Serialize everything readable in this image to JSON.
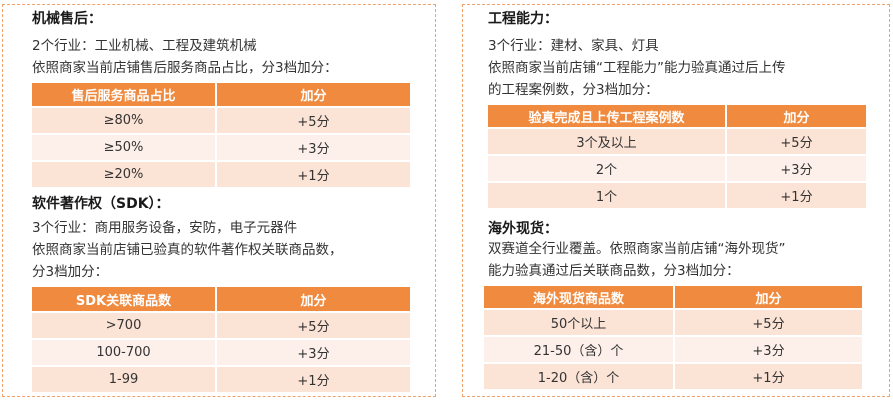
{
  "machinery": {
    "title": "机械售后：",
    "scope": "2个行业：工业机械、工程及建筑机械",
    "desc": "依照商家当前店铺售后服务商品占比，分3档加分：",
    "table": {
      "headers": [
        "售后服务商品占比",
        "加分"
      ],
      "rows": [
        [
          "≥80%",
          "+5分"
        ],
        [
          "≥50%",
          "+3分"
        ],
        [
          "≥20%",
          "+1分"
        ]
      ]
    }
  },
  "software": {
    "title": "软件著作权（SDK）：",
    "scope": "3个行业：商用服务设备，安防，电子元器件",
    "desc_line1": "依照商家当前店铺已验真的软件著作权关联商品数，",
    "desc_line2": "分3档加分：",
    "table": {
      "headers": [
        "SDK关联商品数",
        "加分"
      ],
      "rows": [
        [
          ">700",
          "+5分"
        ],
        [
          "100-700",
          "+3分"
        ],
        [
          "1-99",
          "+1分"
        ]
      ]
    }
  },
  "engineering": {
    "title": "工程能力：",
    "scope": "3个行业：建材、家具、灯具",
    "desc_line1": "依照商家当前店铺“工程能力”能力验真通过后上传",
    "desc_line2": "的工程案例数，分3档加分：",
    "table": {
      "headers": [
        "验真完成且上传工程案例数",
        "加分"
      ],
      "rows": [
        [
          "3个及以上",
          "+5分"
        ],
        [
          "2个",
          "+3分"
        ],
        [
          "1个",
          "+1分"
        ]
      ]
    }
  },
  "overseas": {
    "title": "海外现货：",
    "desc_line1": "双赛道全行业覆盖。依照商家当前店铺“海外现货”",
    "desc_line2": "能力验真通过后关联商品数，分3档加分：",
    "table": {
      "headers": [
        "海外现货商品数",
        "加分"
      ],
      "rows": [
        [
          "50个以上",
          "+5分"
        ],
        [
          "21-50（含）个",
          "+3分"
        ],
        [
          "1-20（含）个",
          "+1分"
        ]
      ]
    }
  }
}
